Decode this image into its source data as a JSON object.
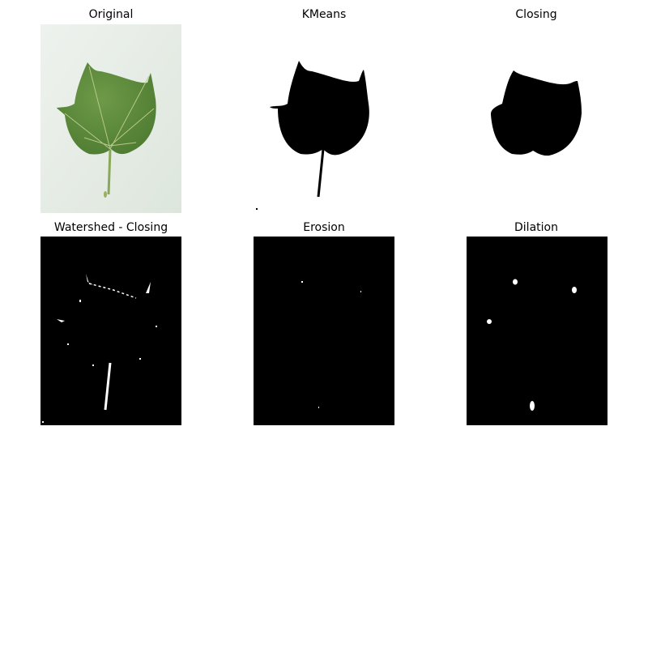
{
  "figure": {
    "panels": [
      {
        "id": "original",
        "title": "Original"
      },
      {
        "id": "kmeans",
        "title": "KMeans"
      },
      {
        "id": "closing",
        "title": "Closing"
      },
      {
        "id": "watershed_closing",
        "title": "Watershed - Closing"
      },
      {
        "id": "erosion",
        "title": "Erosion"
      },
      {
        "id": "dilation",
        "title": "Dilation"
      }
    ]
  },
  "colors": {
    "background": "#ffffff",
    "mask_foreground": "#000000",
    "mask_background": "#ffffff",
    "leaf_green": "#5a8a3c",
    "leaf_vein": "#b8c98a",
    "photo_backdrop": "#e8eee8"
  }
}
